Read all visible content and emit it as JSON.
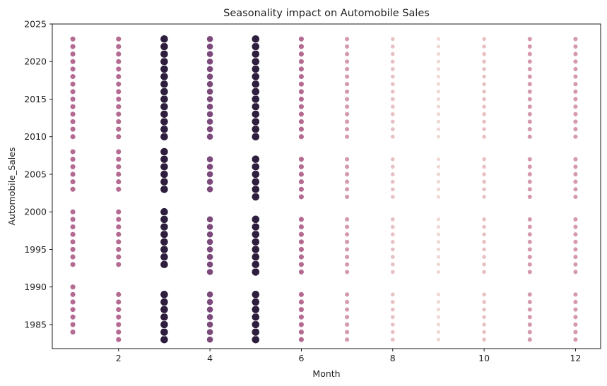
{
  "chart_data": {
    "type": "scatter",
    "title": "Seasonality impact on Automobile Sales",
    "xlabel": "Month",
    "ylabel": "Automobile_Sales",
    "xlim": [
      0.55,
      12.55
    ],
    "ylim": [
      1981.8,
      2025
    ],
    "xticks": [
      2,
      4,
      6,
      8,
      10,
      12
    ],
    "yticks": [
      1985,
      1990,
      1995,
      2000,
      2005,
      2010,
      2015,
      2020,
      2025
    ],
    "grid": false,
    "legend": "none",
    "columns": [
      {
        "x": 1,
        "color": "#b46a91",
        "size": 6.5,
        "years": [
          1984,
          1985,
          1986,
          1987,
          1988,
          1989,
          1990,
          1993,
          1994,
          1995,
          1996,
          1997,
          1998,
          1999,
          2000,
          2003,
          2004,
          2005,
          2006,
          2007,
          2008,
          2010,
          2011,
          2012,
          2013,
          2014,
          2015,
          2016,
          2017,
          2018,
          2019,
          2020,
          2021,
          2022,
          2023
        ]
      },
      {
        "x": 2,
        "color": "#b46a91",
        "size": 6.5,
        "years": [
          1983,
          1984,
          1985,
          1986,
          1987,
          1988,
          1989,
          1993,
          1994,
          1995,
          1996,
          1997,
          1998,
          1999,
          2000,
          2003,
          2004,
          2005,
          2006,
          2007,
          2008,
          2010,
          2011,
          2012,
          2013,
          2014,
          2015,
          2016,
          2017,
          2018,
          2019,
          2020,
          2021,
          2022,
          2023
        ]
      },
      {
        "x": 3,
        "color": "#2d1e3e",
        "size": 10,
        "years": [
          1983,
          1984,
          1985,
          1986,
          1987,
          1988,
          1989,
          1993,
          1994,
          1995,
          1996,
          1997,
          1998,
          1999,
          2000,
          2003,
          2004,
          2005,
          2006,
          2007,
          2008,
          2010,
          2011,
          2012,
          2013,
          2014,
          2015,
          2016,
          2017,
          2018,
          2019,
          2020,
          2021,
          2022,
          2023
        ]
      },
      {
        "x": 4,
        "color": "#7b4a7b",
        "size": 8,
        "years": [
          1983,
          1984,
          1985,
          1986,
          1987,
          1988,
          1989,
          1992,
          1993,
          1994,
          1995,
          1996,
          1997,
          1998,
          1999,
          2003,
          2004,
          2005,
          2006,
          2007,
          2010,
          2011,
          2012,
          2013,
          2014,
          2015,
          2016,
          2017,
          2018,
          2019,
          2020,
          2021,
          2022,
          2023
        ]
      },
      {
        "x": 5,
        "color": "#2d1e3e",
        "size": 10,
        "years": [
          1983,
          1984,
          1985,
          1986,
          1987,
          1988,
          1989,
          1992,
          1993,
          1994,
          1995,
          1996,
          1997,
          1998,
          1999,
          2002,
          2003,
          2004,
          2005,
          2006,
          2007,
          2010,
          2011,
          2012,
          2013,
          2014,
          2015,
          2016,
          2017,
          2018,
          2019,
          2020,
          2021,
          2022,
          2023
        ]
      },
      {
        "x": 6,
        "color": "#b46a91",
        "size": 6.5,
        "years": [
          1983,
          1984,
          1985,
          1986,
          1987,
          1988,
          1989,
          1992,
          1993,
          1994,
          1995,
          1996,
          1997,
          1998,
          1999,
          2002,
          2003,
          2004,
          2005,
          2006,
          2007,
          2010,
          2011,
          2012,
          2013,
          2014,
          2015,
          2016,
          2017,
          2018,
          2019,
          2020,
          2021,
          2022,
          2023
        ]
      },
      {
        "x": 7,
        "color": "#d49aab",
        "size": 5.5,
        "years": [
          1983,
          1984,
          1985,
          1986,
          1987,
          1988,
          1989,
          1992,
          1993,
          1994,
          1995,
          1996,
          1997,
          1998,
          1999,
          2002,
          2003,
          2004,
          2005,
          2006,
          2007,
          2010,
          2011,
          2012,
          2013,
          2014,
          2015,
          2016,
          2017,
          2018,
          2019,
          2020,
          2021,
          2022,
          2023
        ]
      },
      {
        "x": 8,
        "color": "#e7c0c3",
        "size": 5,
        "years": [
          1983,
          1984,
          1985,
          1986,
          1987,
          1988,
          1989,
          1992,
          1993,
          1994,
          1995,
          1996,
          1997,
          1998,
          1999,
          2002,
          2003,
          2004,
          2005,
          2006,
          2007,
          2010,
          2011,
          2012,
          2013,
          2014,
          2015,
          2016,
          2017,
          2018,
          2019,
          2020,
          2021,
          2022,
          2023
        ]
      },
      {
        "x": 9,
        "color": "#f0d6d2",
        "size": 4.5,
        "years": [
          1983,
          1984,
          1985,
          1986,
          1987,
          1988,
          1989,
          1992,
          1993,
          1994,
          1995,
          1996,
          1997,
          1998,
          1999,
          2002,
          2003,
          2004,
          2005,
          2006,
          2007,
          2010,
          2011,
          2012,
          2013,
          2014,
          2015,
          2016,
          2017,
          2018,
          2019,
          2020,
          2021,
          2022,
          2023
        ]
      },
      {
        "x": 10,
        "color": "#e7c0c3",
        "size": 5,
        "years": [
          1983,
          1984,
          1985,
          1986,
          1987,
          1988,
          1989,
          1992,
          1993,
          1994,
          1995,
          1996,
          1997,
          1998,
          1999,
          2002,
          2003,
          2004,
          2005,
          2006,
          2007,
          2010,
          2011,
          2012,
          2013,
          2014,
          2015,
          2016,
          2017,
          2018,
          2019,
          2020,
          2021,
          2022,
          2023
        ]
      },
      {
        "x": 11,
        "color": "#d49aab",
        "size": 5.5,
        "years": [
          1983,
          1984,
          1985,
          1986,
          1987,
          1988,
          1989,
          1992,
          1993,
          1994,
          1995,
          1996,
          1997,
          1998,
          1999,
          2002,
          2003,
          2004,
          2005,
          2006,
          2007,
          2010,
          2011,
          2012,
          2013,
          2014,
          2015,
          2016,
          2017,
          2018,
          2019,
          2020,
          2021,
          2022,
          2023
        ]
      },
      {
        "x": 12,
        "color": "#d49aab",
        "size": 5.5,
        "years": [
          1983,
          1984,
          1985,
          1986,
          1987,
          1988,
          1989,
          1992,
          1993,
          1994,
          1995,
          1996,
          1997,
          1998,
          1999,
          2002,
          2003,
          2004,
          2005,
          2006,
          2007,
          2010,
          2011,
          2012,
          2013,
          2014,
          2015,
          2016,
          2017,
          2018,
          2019,
          2020,
          2021,
          2022,
          2023
        ]
      }
    ]
  }
}
